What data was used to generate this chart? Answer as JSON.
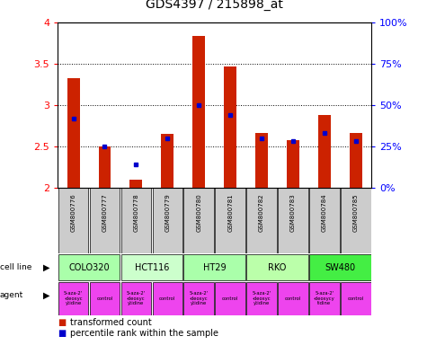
{
  "title": "GDS4397 / 215898_at",
  "samples": [
    "GSM800776",
    "GSM800777",
    "GSM800778",
    "GSM800779",
    "GSM800780",
    "GSM800781",
    "GSM800782",
    "GSM800783",
    "GSM800784",
    "GSM800785"
  ],
  "red_values": [
    3.33,
    2.5,
    2.1,
    2.65,
    3.84,
    3.47,
    2.67,
    2.58,
    2.88,
    2.67
  ],
  "blue_values": [
    2.84,
    2.5,
    2.28,
    2.6,
    3.0,
    2.88,
    2.6,
    2.57,
    2.67,
    2.57
  ],
  "ymin": 2.0,
  "ymax": 4.0,
  "yticks_left": [
    2.0,
    2.5,
    3.0,
    3.5,
    4.0
  ],
  "yticks_right_pos": [
    2.0,
    2.5,
    3.0,
    3.5,
    4.0
  ],
  "yticks_right_labels": [
    "0%",
    "25%",
    "50%",
    "75%",
    "100%"
  ],
  "bar_color": "#cc2200",
  "dot_color": "#0000cc",
  "sample_bg": "#cccccc",
  "cell_line_data": [
    {
      "name": "COLO320",
      "start": 0,
      "end": 1,
      "color": "#aaffaa"
    },
    {
      "name": "HCT116",
      "start": 2,
      "end": 3,
      "color": "#ccffcc"
    },
    {
      "name": "HT29",
      "start": 4,
      "end": 5,
      "color": "#aaffaa"
    },
    {
      "name": "RKO",
      "start": 6,
      "end": 7,
      "color": "#bbffaa"
    },
    {
      "name": "SW480",
      "start": 8,
      "end": 9,
      "color": "#44ee44"
    }
  ],
  "agent_names": [
    "5-aza-2'\n-deoxyc\nytidine",
    "control",
    "5-aza-2'\n-deoxyc\nytidine",
    "control",
    "5-aza-2'\n-deoxyc\nytidine",
    "control",
    "5-aza-2'\n-deoxyc\nytidine",
    "control",
    "5-aza-2'\n-deoxycy\ntidine",
    "control"
  ],
  "agent_color": "#ee44ee",
  "legend_red": "transformed count",
  "legend_blue": "percentile rank within the sample"
}
